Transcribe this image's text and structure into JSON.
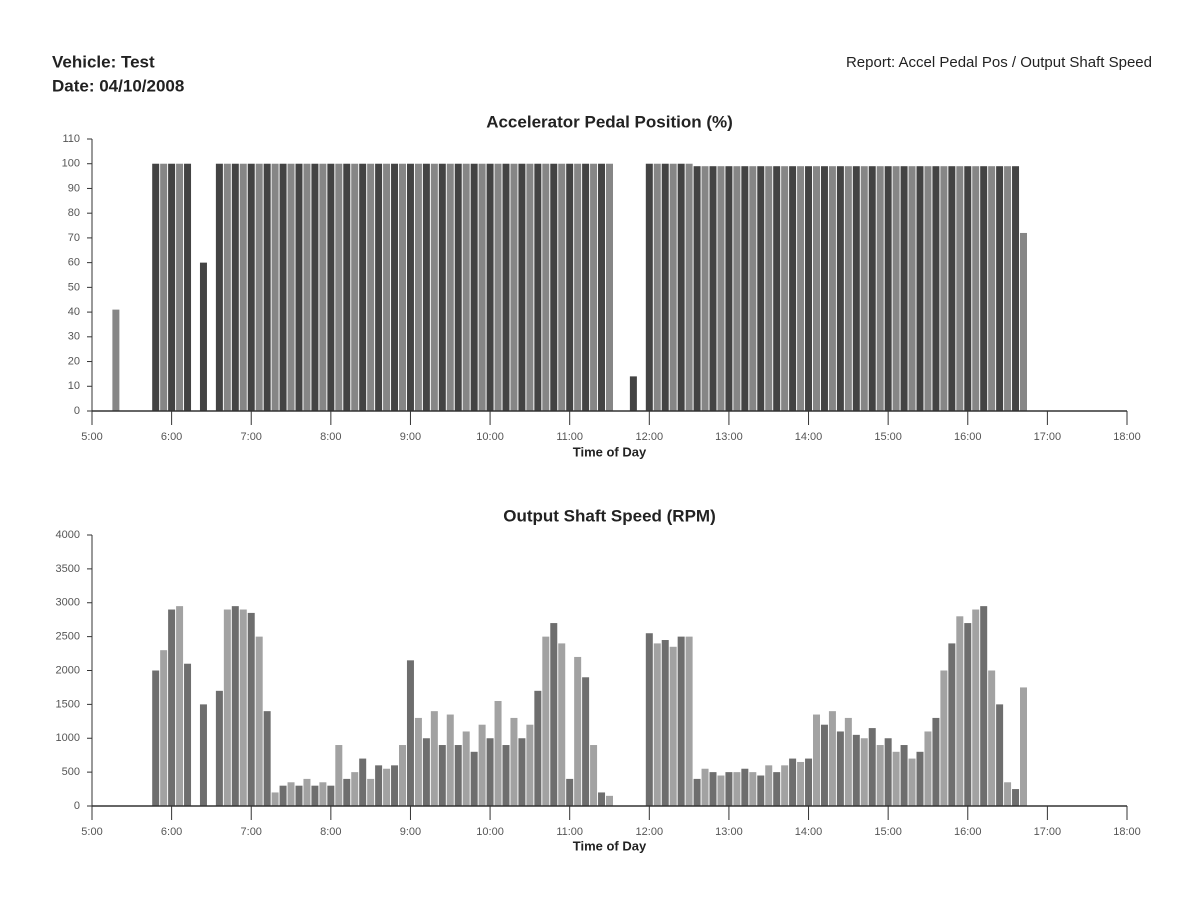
{
  "header": {
    "vehicle": "Vehicle: Test",
    "date": "Date: 04/10/2008",
    "report": "Report: Accel Pedal Pos / Output Shaft Speed"
  },
  "chart_data": [
    {
      "type": "spike",
      "title": "Accelerator Pedal Position (%)",
      "x_label": "Time of Day",
      "color": "#222222",
      "xlim": [
        5,
        18
      ],
      "ylim": [
        0,
        110
      ],
      "xticks": [
        {
          "value": 5,
          "label": "5:00"
        },
        {
          "value": 6,
          "label": "6:00"
        },
        {
          "value": 7,
          "label": "7:00"
        },
        {
          "value": 8,
          "label": "8:00"
        },
        {
          "value": 9,
          "label": "9:00"
        },
        {
          "value": 10,
          "label": "10:00"
        },
        {
          "value": 11,
          "label": "11:00"
        },
        {
          "value": 12,
          "label": "12:00"
        },
        {
          "value": 13,
          "label": "13:00"
        },
        {
          "value": 14,
          "label": "14:00"
        },
        {
          "value": 15,
          "label": "15:00"
        },
        {
          "value": 16,
          "label": "16:00"
        },
        {
          "value": 17,
          "label": "17:00"
        },
        {
          "value": 18,
          "label": "18:00"
        }
      ],
      "yticks": [
        0,
        10,
        20,
        30,
        40,
        50,
        60,
        70,
        80,
        90,
        100,
        110
      ],
      "x": [
        5,
        5.1,
        5.2,
        5.3,
        5.4,
        5.5,
        5.6,
        5.7,
        5.8,
        5.9,
        6,
        6.1,
        6.2,
        6.3,
        6.4,
        6.5,
        6.6,
        6.7,
        6.8,
        6.9,
        7,
        7.1,
        7.2,
        7.3,
        7.4,
        7.5,
        7.6,
        7.7,
        7.8,
        7.9,
        8,
        8.1,
        8.2,
        8.3,
        8.4,
        8.5,
        8.6,
        8.7,
        8.8,
        8.9,
        9,
        9.1,
        9.2,
        9.3,
        9.4,
        9.5,
        9.6,
        9.7,
        9.8,
        9.9,
        10,
        10.1,
        10.2,
        10.3,
        10.4,
        10.5,
        10.6,
        10.7,
        10.8,
        10.9,
        11,
        11.1,
        11.2,
        11.3,
        11.4,
        11.5,
        11.6,
        11.7,
        11.8,
        11.9,
        12,
        12.1,
        12.2,
        12.3,
        12.4,
        12.5,
        12.6,
        12.7,
        12.8,
        12.9,
        13,
        13.1,
        13.2,
        13.3,
        13.4,
        13.5,
        13.6,
        13.7,
        13.8,
        13.9,
        14,
        14.1,
        14.2,
        14.3,
        14.4,
        14.5,
        14.6,
        14.7,
        14.8,
        14.9,
        15,
        15.1,
        15.2,
        15.3,
        15.4,
        15.5,
        15.6,
        15.7,
        15.8,
        15.9,
        16,
        16.1,
        16.2,
        16.3,
        16.4,
        16.5,
        16.6,
        16.7,
        16.8,
        16.9,
        17
      ],
      "values": [
        0,
        0,
        0,
        41,
        0,
        0,
        0,
        0,
        100,
        100,
        100,
        100,
        100,
        0,
        60,
        0,
        100,
        100,
        100,
        100,
        100,
        100,
        100,
        100,
        100,
        100,
        100,
        100,
        100,
        100,
        100,
        100,
        100,
        100,
        100,
        100,
        100,
        100,
        100,
        100,
        100,
        100,
        100,
        100,
        100,
        100,
        100,
        100,
        100,
        100,
        100,
        100,
        100,
        100,
        100,
        100,
        100,
        100,
        100,
        100,
        100,
        100,
        100,
        100,
        100,
        100,
        0,
        0,
        14,
        0,
        100,
        100,
        100,
        100,
        100,
        100,
        99,
        99,
        99,
        99,
        99,
        99,
        99,
        99,
        99,
        99,
        99,
        99,
        99,
        99,
        99,
        99,
        99,
        99,
        99,
        99,
        99,
        99,
        99,
        99,
        99,
        99,
        99,
        99,
        99,
        99,
        99,
        99,
        99,
        99,
        99,
        99,
        99,
        99,
        99,
        99,
        99,
        72,
        0,
        0,
        0
      ]
    },
    {
      "type": "spike",
      "title": "Output Shaft Speed (RPM)",
      "x_label": "Time of Day",
      "color": "#555555",
      "xlim": [
        5,
        18
      ],
      "ylim": [
        0,
        4000
      ],
      "xticks": [
        {
          "value": 5,
          "label": "5:00"
        },
        {
          "value": 6,
          "label": "6:00"
        },
        {
          "value": 7,
          "label": "7:00"
        },
        {
          "value": 8,
          "label": "8:00"
        },
        {
          "value": 9,
          "label": "9:00"
        },
        {
          "value": 10,
          "label": "10:00"
        },
        {
          "value": 11,
          "label": "11:00"
        },
        {
          "value": 12,
          "label": "12:00"
        },
        {
          "value": 13,
          "label": "13:00"
        },
        {
          "value": 14,
          "label": "14:00"
        },
        {
          "value": 15,
          "label": "15:00"
        },
        {
          "value": 16,
          "label": "16:00"
        },
        {
          "value": 17,
          "label": "17:00"
        },
        {
          "value": 18,
          "label": "18:00"
        }
      ],
      "yticks": [
        0,
        500,
        1000,
        1500,
        2000,
        2500,
        3000,
        3500,
        4000
      ],
      "x": [
        5,
        5.1,
        5.2,
        5.3,
        5.4,
        5.5,
        5.6,
        5.7,
        5.8,
        5.9,
        6,
        6.1,
        6.2,
        6.3,
        6.4,
        6.5,
        6.6,
        6.7,
        6.8,
        6.9,
        7,
        7.1,
        7.2,
        7.3,
        7.4,
        7.5,
        7.6,
        7.7,
        7.8,
        7.9,
        8,
        8.1,
        8.2,
        8.3,
        8.4,
        8.5,
        8.6,
        8.7,
        8.8,
        8.9,
        9,
        9.1,
        9.2,
        9.3,
        9.4,
        9.5,
        9.6,
        9.7,
        9.8,
        9.9,
        10,
        10.1,
        10.2,
        10.3,
        10.4,
        10.5,
        10.6,
        10.7,
        10.8,
        10.9,
        11,
        11.1,
        11.2,
        11.3,
        11.4,
        11.5,
        11.6,
        11.7,
        11.8,
        11.9,
        12,
        12.1,
        12.2,
        12.3,
        12.4,
        12.5,
        12.6,
        12.7,
        12.8,
        12.9,
        13,
        13.1,
        13.2,
        13.3,
        13.4,
        13.5,
        13.6,
        13.7,
        13.8,
        13.9,
        14,
        14.1,
        14.2,
        14.3,
        14.4,
        14.5,
        14.6,
        14.7,
        14.8,
        14.9,
        15,
        15.1,
        15.2,
        15.3,
        15.4,
        15.5,
        15.6,
        15.7,
        15.8,
        15.9,
        16,
        16.1,
        16.2,
        16.3,
        16.4,
        16.5,
        16.6,
        16.7,
        16.8,
        16.9,
        17
      ],
      "values": [
        0,
        0,
        0,
        0,
        0,
        0,
        0,
        0,
        2000,
        2300,
        2900,
        2950,
        2100,
        0,
        1500,
        0,
        1700,
        2900,
        2950,
        2900,
        2850,
        2500,
        1400,
        200,
        300,
        350,
        300,
        400,
        300,
        350,
        300,
        900,
        400,
        500,
        700,
        400,
        600,
        550,
        600,
        900,
        2150,
        1300,
        1000,
        1400,
        900,
        1350,
        900,
        1100,
        800,
        1200,
        1000,
        1550,
        900,
        1300,
        1000,
        1200,
        1700,
        2500,
        2700,
        2400,
        400,
        2200,
        1900,
        900,
        200,
        150,
        0,
        0,
        0,
        0,
        2550,
        2400,
        2450,
        2350,
        2500,
        2500,
        400,
        550,
        500,
        450,
        500,
        500,
        550,
        500,
        450,
        600,
        500,
        600,
        700,
        650,
        700,
        1350,
        1200,
        1400,
        1100,
        1300,
        1050,
        1000,
        1150,
        900,
        1000,
        800,
        900,
        700,
        800,
        1100,
        1300,
        2000,
        2400,
        2800,
        2700,
        2900,
        2950,
        2000,
        1500,
        350,
        250,
        1750,
        0,
        0,
        0
      ]
    }
  ]
}
